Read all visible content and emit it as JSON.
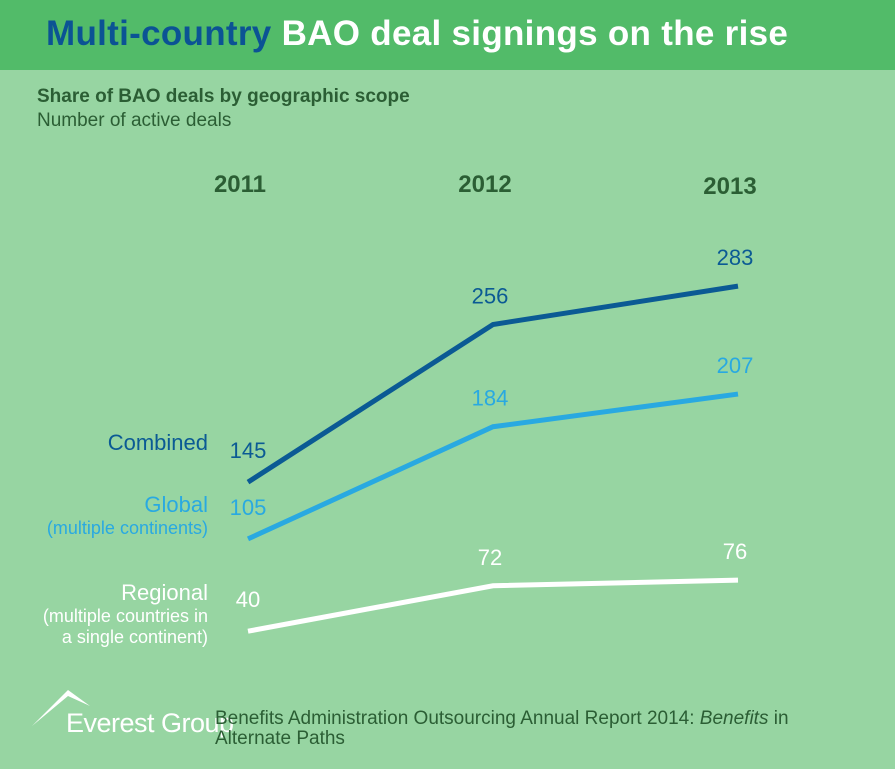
{
  "title": {
    "part1": "Multi-country",
    "part2": "BAO deal signings on the rise"
  },
  "chart_data": {
    "type": "line",
    "title": "Share of BAO deals by geographic scope",
    "subtitle": "Number of active deals",
    "categories": [
      "2011",
      "2012",
      "2013"
    ],
    "series": [
      {
        "name": "Combined",
        "sublabel": "",
        "color": "#0b5a94",
        "values": [
          145,
          256,
          283
        ]
      },
      {
        "name": "Global",
        "sublabel": "(multiple continents)",
        "color": "#29a9e1",
        "values": [
          105,
          184,
          207
        ]
      },
      {
        "name": "Regional",
        "sublabel": "(multiple countries in a single continent)",
        "sublabel_lines": [
          "(multiple countries in",
          "a single continent)"
        ],
        "color": "#ffffff",
        "values": [
          40,
          72,
          76
        ]
      }
    ],
    "grid": false
  },
  "footer": {
    "logo": "Everest Group",
    "source": "Benefits Administration Outsourcing Annual Report 2014: ",
    "source_italic": "Benefits",
    "source_rest": " in Alternate Paths"
  }
}
